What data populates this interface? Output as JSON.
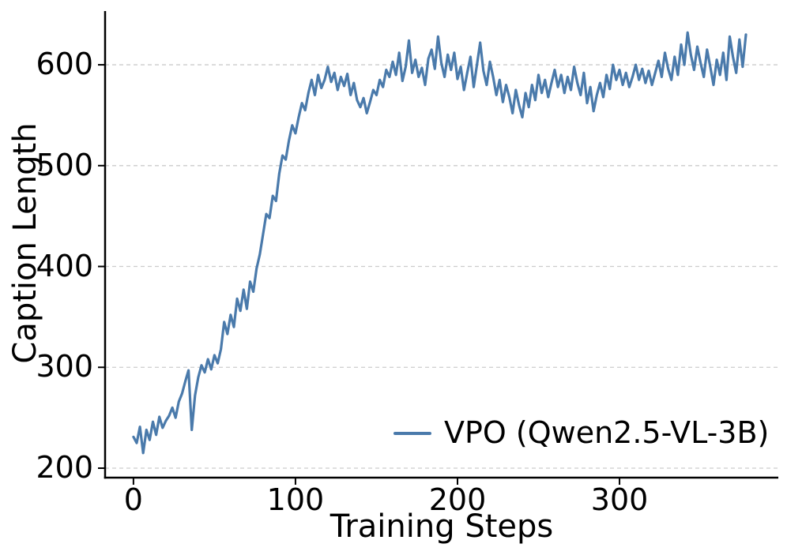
{
  "chart_data": {
    "type": "line",
    "title": "",
    "xlabel": "Training Steps",
    "ylabel": "Caption Length",
    "x_ticks": [
      0,
      100,
      200,
      300
    ],
    "y_ticks": [
      200,
      300,
      400,
      500,
      600
    ],
    "xlim": [
      -17.5,
      398
    ],
    "ylim": [
      190.6,
      653.3
    ],
    "grid": "horizontal-dashed",
    "legend_position": "lower right",
    "colors": {
      "line": "#4a7aab",
      "grid": "#cccccc",
      "axis": "#000000",
      "text": "#000000",
      "background": "#ffffff"
    },
    "series": [
      {
        "name": "VPO (Qwen2.5-VL-3B)",
        "color": "#4a7aab",
        "x_start": 0,
        "x_step": 2,
        "values": [
          231,
          225,
          241,
          215,
          238,
          228,
          246,
          233,
          251,
          240,
          247,
          252,
          260,
          250,
          266,
          274,
          286,
          297,
          238,
          272,
          290,
          302,
          295,
          308,
          298,
          312,
          304,
          318,
          345,
          333,
          352,
          340,
          368,
          356,
          377,
          358,
          385,
          375,
          398,
          412,
          432,
          452,
          448,
          470,
          465,
          492,
          510,
          506,
          525,
          540,
          532,
          548,
          562,
          555,
          572,
          585,
          570,
          590,
          577,
          585,
          598,
          583,
          592,
          575,
          588,
          579,
          591,
          570,
          582,
          565,
          558,
          567,
          552,
          563,
          575,
          570,
          585,
          578,
          595,
          588,
          603,
          590,
          612,
          584,
          598,
          624,
          592,
          605,
          588,
          597,
          580,
          606,
          615,
          596,
          628,
          602,
          588,
          610,
          595,
          612,
          586,
          598,
          575,
          592,
          608,
          578,
          600,
          622,
          594,
          580,
          603,
          588,
          570,
          585,
          563,
          580,
          568,
          552,
          575,
          560,
          548,
          572,
          558,
          580,
          565,
          590,
          572,
          585,
          568,
          582,
          595,
          578,
          590,
          572,
          588,
          575,
          598,
          582,
          570,
          592,
          562,
          578,
          554,
          570,
          582,
          568,
          590,
          576,
          600,
          585,
          595,
          580,
          592,
          578,
          588,
          600,
          585,
          596,
          582,
          594,
          580,
          592,
          604,
          588,
          612,
          596,
          585,
          608,
          590,
          620,
          600,
          632,
          610,
          595,
          618,
          602,
          588,
          615,
          598,
          580,
          605,
          590,
          612,
          585,
          628,
          608,
          592,
          625,
          598,
          630
        ]
      }
    ]
  }
}
